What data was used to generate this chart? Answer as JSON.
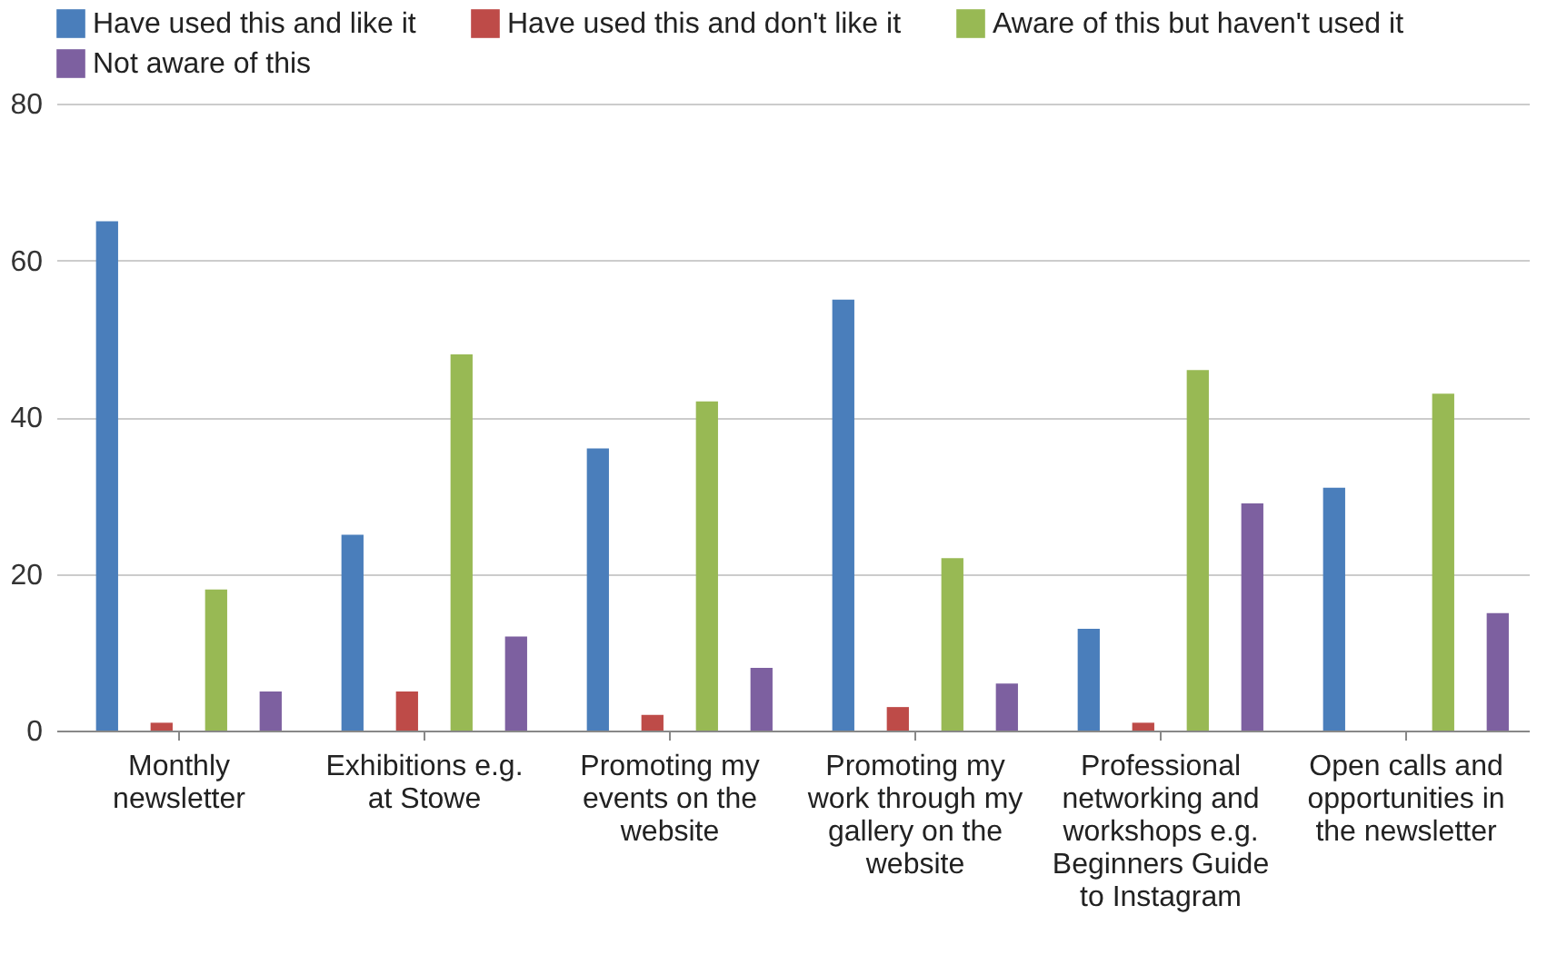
{
  "chart_data": {
    "type": "bar",
    "categories": [
      "Monthly newsletter",
      "Exhibitions e.g. at Stowe",
      "Promoting my events on the website",
      "Promoting my work through my gallery on the website",
      "Professional networking and workshops e.g. Beginners Guide to Instagram",
      "Open calls and opportunities in the newsletter"
    ],
    "series": [
      {
        "name": "Have used this and like it",
        "color": "#4a7ebb",
        "values": [
          65,
          25,
          36,
          55,
          13,
          31
        ]
      },
      {
        "name": "Have used this and don't like it",
        "color": "#be4b48",
        "values": [
          1,
          5,
          2,
          3,
          1,
          0
        ]
      },
      {
        "name": "Aware of this but haven't used it",
        "color": "#98b954",
        "values": [
          18,
          48,
          42,
          22,
          46,
          43
        ]
      },
      {
        "name": "Not aware of this",
        "color": "#7d60a0",
        "values": [
          5,
          12,
          8,
          6,
          29,
          15
        ]
      }
    ],
    "ylim": [
      0,
      80
    ],
    "yticks": [
      0,
      20,
      40,
      60,
      80
    ],
    "grid": "y",
    "legend": "top"
  }
}
